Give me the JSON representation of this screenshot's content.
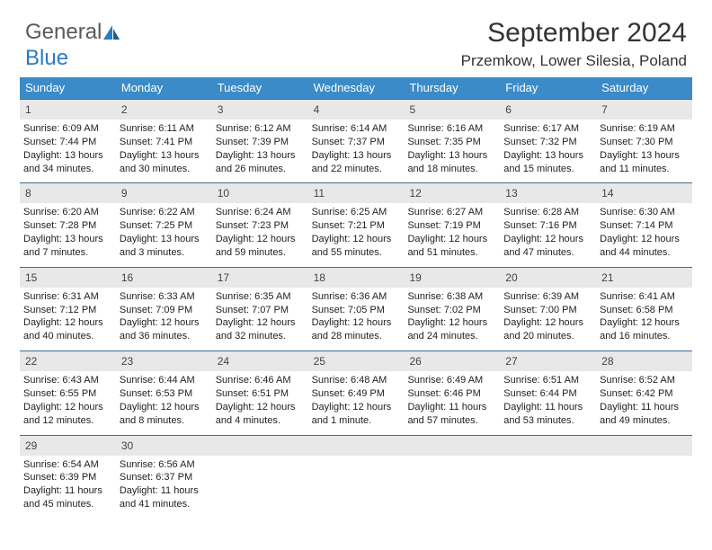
{
  "logo": {
    "text1": "General",
    "text2": "Blue"
  },
  "title": "September 2024",
  "subtitle": "Przemkow, Lower Silesia, Poland",
  "colors": {
    "header_bg": "#3b8bc8",
    "header_text": "#ffffff",
    "daynum_bg": "#e8e8e8",
    "week_border": "#3b6e9a",
    "logo_gray": "#5a5a5a",
    "logo_blue": "#2b7bbf"
  },
  "day_headers": [
    "Sunday",
    "Monday",
    "Tuesday",
    "Wednesday",
    "Thursday",
    "Friday",
    "Saturday"
  ],
  "weeks": [
    [
      {
        "n": "1",
        "sr": "Sunrise: 6:09 AM",
        "ss": "Sunset: 7:44 PM",
        "d1": "Daylight: 13 hours",
        "d2": "and 34 minutes."
      },
      {
        "n": "2",
        "sr": "Sunrise: 6:11 AM",
        "ss": "Sunset: 7:41 PM",
        "d1": "Daylight: 13 hours",
        "d2": "and 30 minutes."
      },
      {
        "n": "3",
        "sr": "Sunrise: 6:12 AM",
        "ss": "Sunset: 7:39 PM",
        "d1": "Daylight: 13 hours",
        "d2": "and 26 minutes."
      },
      {
        "n": "4",
        "sr": "Sunrise: 6:14 AM",
        "ss": "Sunset: 7:37 PM",
        "d1": "Daylight: 13 hours",
        "d2": "and 22 minutes."
      },
      {
        "n": "5",
        "sr": "Sunrise: 6:16 AM",
        "ss": "Sunset: 7:35 PM",
        "d1": "Daylight: 13 hours",
        "d2": "and 18 minutes."
      },
      {
        "n": "6",
        "sr": "Sunrise: 6:17 AM",
        "ss": "Sunset: 7:32 PM",
        "d1": "Daylight: 13 hours",
        "d2": "and 15 minutes."
      },
      {
        "n": "7",
        "sr": "Sunrise: 6:19 AM",
        "ss": "Sunset: 7:30 PM",
        "d1": "Daylight: 13 hours",
        "d2": "and 11 minutes."
      }
    ],
    [
      {
        "n": "8",
        "sr": "Sunrise: 6:20 AM",
        "ss": "Sunset: 7:28 PM",
        "d1": "Daylight: 13 hours",
        "d2": "and 7 minutes."
      },
      {
        "n": "9",
        "sr": "Sunrise: 6:22 AM",
        "ss": "Sunset: 7:25 PM",
        "d1": "Daylight: 13 hours",
        "d2": "and 3 minutes."
      },
      {
        "n": "10",
        "sr": "Sunrise: 6:24 AM",
        "ss": "Sunset: 7:23 PM",
        "d1": "Daylight: 12 hours",
        "d2": "and 59 minutes."
      },
      {
        "n": "11",
        "sr": "Sunrise: 6:25 AM",
        "ss": "Sunset: 7:21 PM",
        "d1": "Daylight: 12 hours",
        "d2": "and 55 minutes."
      },
      {
        "n": "12",
        "sr": "Sunrise: 6:27 AM",
        "ss": "Sunset: 7:19 PM",
        "d1": "Daylight: 12 hours",
        "d2": "and 51 minutes."
      },
      {
        "n": "13",
        "sr": "Sunrise: 6:28 AM",
        "ss": "Sunset: 7:16 PM",
        "d1": "Daylight: 12 hours",
        "d2": "and 47 minutes."
      },
      {
        "n": "14",
        "sr": "Sunrise: 6:30 AM",
        "ss": "Sunset: 7:14 PM",
        "d1": "Daylight: 12 hours",
        "d2": "and 44 minutes."
      }
    ],
    [
      {
        "n": "15",
        "sr": "Sunrise: 6:31 AM",
        "ss": "Sunset: 7:12 PM",
        "d1": "Daylight: 12 hours",
        "d2": "and 40 minutes."
      },
      {
        "n": "16",
        "sr": "Sunrise: 6:33 AM",
        "ss": "Sunset: 7:09 PM",
        "d1": "Daylight: 12 hours",
        "d2": "and 36 minutes."
      },
      {
        "n": "17",
        "sr": "Sunrise: 6:35 AM",
        "ss": "Sunset: 7:07 PM",
        "d1": "Daylight: 12 hours",
        "d2": "and 32 minutes."
      },
      {
        "n": "18",
        "sr": "Sunrise: 6:36 AM",
        "ss": "Sunset: 7:05 PM",
        "d1": "Daylight: 12 hours",
        "d2": "and 28 minutes."
      },
      {
        "n": "19",
        "sr": "Sunrise: 6:38 AM",
        "ss": "Sunset: 7:02 PM",
        "d1": "Daylight: 12 hours",
        "d2": "and 24 minutes."
      },
      {
        "n": "20",
        "sr": "Sunrise: 6:39 AM",
        "ss": "Sunset: 7:00 PM",
        "d1": "Daylight: 12 hours",
        "d2": "and 20 minutes."
      },
      {
        "n": "21",
        "sr": "Sunrise: 6:41 AM",
        "ss": "Sunset: 6:58 PM",
        "d1": "Daylight: 12 hours",
        "d2": "and 16 minutes."
      }
    ],
    [
      {
        "n": "22",
        "sr": "Sunrise: 6:43 AM",
        "ss": "Sunset: 6:55 PM",
        "d1": "Daylight: 12 hours",
        "d2": "and 12 minutes."
      },
      {
        "n": "23",
        "sr": "Sunrise: 6:44 AM",
        "ss": "Sunset: 6:53 PM",
        "d1": "Daylight: 12 hours",
        "d2": "and 8 minutes."
      },
      {
        "n": "24",
        "sr": "Sunrise: 6:46 AM",
        "ss": "Sunset: 6:51 PM",
        "d1": "Daylight: 12 hours",
        "d2": "and 4 minutes."
      },
      {
        "n": "25",
        "sr": "Sunrise: 6:48 AM",
        "ss": "Sunset: 6:49 PM",
        "d1": "Daylight: 12 hours",
        "d2": "and 1 minute."
      },
      {
        "n": "26",
        "sr": "Sunrise: 6:49 AM",
        "ss": "Sunset: 6:46 PM",
        "d1": "Daylight: 11 hours",
        "d2": "and 57 minutes."
      },
      {
        "n": "27",
        "sr": "Sunrise: 6:51 AM",
        "ss": "Sunset: 6:44 PM",
        "d1": "Daylight: 11 hours",
        "d2": "and 53 minutes."
      },
      {
        "n": "28",
        "sr": "Sunrise: 6:52 AM",
        "ss": "Sunset: 6:42 PM",
        "d1": "Daylight: 11 hours",
        "d2": "and 49 minutes."
      }
    ],
    [
      {
        "n": "29",
        "sr": "Sunrise: 6:54 AM",
        "ss": "Sunset: 6:39 PM",
        "d1": "Daylight: 11 hours",
        "d2": "and 45 minutes."
      },
      {
        "n": "30",
        "sr": "Sunrise: 6:56 AM",
        "ss": "Sunset: 6:37 PM",
        "d1": "Daylight: 11 hours",
        "d2": "and 41 minutes."
      },
      {
        "n": "",
        "sr": "",
        "ss": "",
        "d1": "",
        "d2": ""
      },
      {
        "n": "",
        "sr": "",
        "ss": "",
        "d1": "",
        "d2": ""
      },
      {
        "n": "",
        "sr": "",
        "ss": "",
        "d1": "",
        "d2": ""
      },
      {
        "n": "",
        "sr": "",
        "ss": "",
        "d1": "",
        "d2": ""
      },
      {
        "n": "",
        "sr": "",
        "ss": "",
        "d1": "",
        "d2": ""
      }
    ]
  ]
}
